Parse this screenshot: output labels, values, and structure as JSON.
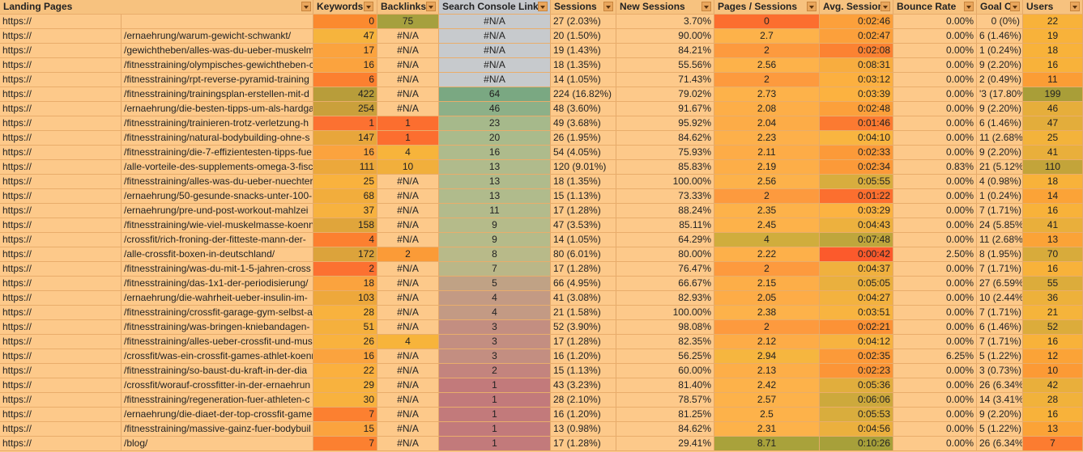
{
  "headers": {
    "landing": "Landing Pages",
    "keywords": "Keywords",
    "backlinks": "Backlinks",
    "sc_links": "Search Console Links",
    "sessions": "Sessions",
    "new_sessions": "New Sessions",
    "pages_session": "Pages / Sessions",
    "avg_sessions": "Avg. Sessions",
    "bounce": "Bounce Rate",
    "goal": "Goal Co",
    "users": "Users"
  },
  "rows": [
    [
      "https://",
      "",
      "0",
      "75",
      "#N/A",
      "27 (2.03%)",
      "3.70%",
      "0",
      "0:02:46",
      "0.00%",
      "0 (0%)",
      "22"
    ],
    [
      "https://",
      "/ernaehrung/warum-gewicht-schwankt/",
      "47",
      "#N/A",
      "#N/A",
      "20 (1.50%)",
      "90.00%",
      "2.7",
      "0:02:47",
      "0.00%",
      "6 (1.46%)",
      "19"
    ],
    [
      "https://",
      "/gewichtheben/alles-was-du-ueber-muskelm",
      "17",
      "#N/A",
      "#N/A",
      "19 (1.43%)",
      "84.21%",
      "2",
      "0:02:08",
      "0.00%",
      "1 (0.24%)",
      "18"
    ],
    [
      "https://",
      "/fitnesstraining/olympisches-gewichtheben-c",
      "16",
      "#N/A",
      "#N/A",
      "18 (1.35%)",
      "55.56%",
      "2.56",
      "0:08:31",
      "0.00%",
      "9 (2.20%)",
      "16"
    ],
    [
      "https://",
      "/fitnesstraining/rpt-reverse-pyramid-training",
      "6",
      "#N/A",
      "#N/A",
      "14 (1.05%)",
      "71.43%",
      "2",
      "0:03:12",
      "0.00%",
      "2 (0.49%)",
      "11"
    ],
    [
      "https://",
      "/fitnesstraining/trainingsplan-erstellen-mit-d",
      "422",
      "#N/A",
      "64",
      "224 (16.82%)",
      "79.02%",
      "2.73",
      "0:03:39",
      "0.00%",
      "'3 (17.80%",
      "199"
    ],
    [
      "https://",
      "/ernaehrung/die-besten-tipps-um-als-hardga",
      "254",
      "#N/A",
      "46",
      "48 (3.60%)",
      "91.67%",
      "2.08",
      "0:02:48",
      "0.00%",
      "9 (2.20%)",
      "46"
    ],
    [
      "https://",
      "/fitnesstraining/trainieren-trotz-verletzung-h",
      "1",
      "1",
      "23",
      "49 (3.68%)",
      "95.92%",
      "2.04",
      "0:01:46",
      "0.00%",
      "6 (1.46%)",
      "47"
    ],
    [
      "https://",
      "/fitnesstraining/natural-bodybuilding-ohne-s",
      "147",
      "1",
      "20",
      "26 (1.95%)",
      "84.62%",
      "2.23",
      "0:04:10",
      "0.00%",
      "11 (2.68%)",
      "25"
    ],
    [
      "https://",
      "/fitnesstraining/die-7-effizientesten-tipps-fue",
      "16",
      "4",
      "16",
      "54 (4.05%)",
      "75.93%",
      "2.11",
      "0:02:33",
      "0.00%",
      "9 (2.20%)",
      "41"
    ],
    [
      "https://",
      "/alle-vorteile-des-supplements-omega-3-fisch",
      "111",
      "10",
      "13",
      "120 (9.01%)",
      "85.83%",
      "2.19",
      "0:02:34",
      "0.83%",
      "21 (5.12%)",
      "110"
    ],
    [
      "https://",
      "/fitnesstraining/alles-was-du-ueber-nuechter",
      "25",
      "#N/A",
      "13",
      "18 (1.35%)",
      "100.00%",
      "2.56",
      "0:05:55",
      "0.00%",
      "4 (0.98%)",
      "18"
    ],
    [
      "https://",
      "/ernaehrung/50-gesunde-snacks-unter-100-",
      "68",
      "#N/A",
      "13",
      "15 (1.13%)",
      "73.33%",
      "2",
      "0:01:22",
      "0.00%",
      "1 (0.24%)",
      "14"
    ],
    [
      "https://",
      "/ernaehrung/pre-und-post-workout-mahlzei",
      "37",
      "#N/A",
      "11",
      "17 (1.28%)",
      "88.24%",
      "2.35",
      "0:03:29",
      "0.00%",
      "7 (1.71%)",
      "16"
    ],
    [
      "https://",
      "/fitnesstraining/wie-viel-muskelmasse-koenn",
      "158",
      "#N/A",
      "9",
      "47 (3.53%)",
      "85.11%",
      "2.45",
      "0:04:43",
      "0.00%",
      "24 (5.85%)",
      "41"
    ],
    [
      "https://",
      "/crossfit/rich-froning-der-fitteste-mann-der-",
      "4",
      "#N/A",
      "9",
      "14 (1.05%)",
      "64.29%",
      "4",
      "0:07:48",
      "0.00%",
      "11 (2.68%)",
      "13"
    ],
    [
      "https://",
      "/alle-crossfit-boxen-in-deutschland/",
      "172",
      "2",
      "8",
      "80 (6.01%)",
      "80.00%",
      "2.22",
      "0:00:42",
      "2.50%",
      "8 (1.95%)",
      "70"
    ],
    [
      "https://",
      "/fitnesstraining/was-du-mit-1-5-jahren-cross",
      "2",
      "#N/A",
      "7",
      "17 (1.28%)",
      "76.47%",
      "2",
      "0:04:37",
      "0.00%",
      "7 (1.71%)",
      "16"
    ],
    [
      "https://",
      "/fitnesstraining/das-1x1-der-periodisierung/",
      "18",
      "#N/A",
      "5",
      "66 (4.95%)",
      "66.67%",
      "2.15",
      "0:05:05",
      "0.00%",
      "27 (6.59%)",
      "55"
    ],
    [
      "https://",
      "/ernaehrung/die-wahrheit-ueber-insulin-im-",
      "103",
      "#N/A",
      "4",
      "41 (3.08%)",
      "82.93%",
      "2.05",
      "0:04:27",
      "0.00%",
      "10 (2.44%)",
      "36"
    ],
    [
      "https://",
      "/fitnesstraining/crossfit-garage-gym-selbst-a",
      "28",
      "#N/A",
      "4",
      "21 (1.58%)",
      "100.00%",
      "2.38",
      "0:03:51",
      "0.00%",
      "7 (1.71%)",
      "21"
    ],
    [
      "https://",
      "/fitnesstraining/was-bringen-kniebandagen-",
      "51",
      "#N/A",
      "3",
      "52 (3.90%)",
      "98.08%",
      "2",
      "0:02:21",
      "0.00%",
      "6 (1.46%)",
      "52"
    ],
    [
      "https://",
      "/fitnesstraining/alles-ueber-crossfit-und-mus",
      "26",
      "4",
      "3",
      "17 (1.28%)",
      "82.35%",
      "2.12",
      "0:04:12",
      "0.00%",
      "7 (1.71%)",
      "16"
    ],
    [
      "https://",
      "/crossfit/was-ein-crossfit-games-athlet-koenn",
      "16",
      "#N/A",
      "3",
      "16 (1.20%)",
      "56.25%",
      "2.94",
      "0:02:35",
      "6.25%",
      "5 (1.22%)",
      "12"
    ],
    [
      "https://",
      "/fitnesstraining/so-baust-du-kraft-in-der-dia",
      "22",
      "#N/A",
      "2",
      "15 (1.13%)",
      "60.00%",
      "2.13",
      "0:02:23",
      "0.00%",
      "3 (0.73%)",
      "10"
    ],
    [
      "https://",
      "/crossfit/worauf-crossfitter-in-der-ernaehrun",
      "29",
      "#N/A",
      "1",
      "43 (3.23%)",
      "81.40%",
      "2.42",
      "0:05:36",
      "0.00%",
      "26 (6.34%)",
      "42"
    ],
    [
      "https://",
      "/fitnesstraining/regeneration-fuer-athleten-c",
      "30",
      "#N/A",
      "1",
      "28 (2.10%)",
      "78.57%",
      "2.57",
      "0:06:06",
      "0.00%",
      "14 (3.41%)",
      "28"
    ],
    [
      "https://",
      "/ernaehrung/die-diaet-der-top-crossfit-game",
      "7",
      "#N/A",
      "1",
      "16 (1.20%)",
      "81.25%",
      "2.5",
      "0:05:53",
      "0.00%",
      "9 (2.20%)",
      "16"
    ],
    [
      "https://",
      "/fitnesstraining/massive-gainz-fuer-bodybuil",
      "15",
      "#N/A",
      "1",
      "13 (0.98%)",
      "84.62%",
      "2.31",
      "0:04:56",
      "0.00%",
      "5 (1.22%)",
      "13"
    ],
    [
      "https://",
      "/blog/",
      "7",
      "#N/A",
      "1",
      "17 (1.28%)",
      "29.41%",
      "8.71",
      "0:10:26",
      "0.00%",
      "26 (6.34%)",
      "7"
    ]
  ],
  "colors": {
    "keywords": [
      "#fb8a2f",
      "#f6b43d",
      "#fba33e",
      "#fba33e",
      "#fc8030",
      "#b89d3a",
      "#caa03b",
      "#fc7131",
      "#e8a63b",
      "#fba33e",
      "#eca83b",
      "#f9b23e",
      "#f2ad3c",
      "#f7b23f",
      "#e0a53b",
      "#fc8030",
      "#dca33b",
      "#fc7131",
      "#fba33e",
      "#eea83b",
      "#f8b23e",
      "#f5b03d",
      "#f9b23e",
      "#fba33e",
      "#fbb03e",
      "#f8b23e",
      "#f8b23e",
      "#fc8030",
      "#fba33e",
      "#fc8030"
    ],
    "backlinks": [
      "#a6a03e",
      "#fdc98a",
      "#fdc98a",
      "#fdc98a",
      "#fdc98a",
      "#fdc98a",
      "#fdc98a",
      "#fc6e2f",
      "#fc6e2f",
      "#f7b43b",
      "#f1af3c",
      "#fdc98a",
      "#fdc98a",
      "#fdc98a",
      "#fdc98a",
      "#fdc98a",
      "#fb9b37",
      "#fdc98a",
      "#fdc98a",
      "#fdc98a",
      "#fdc98a",
      "#fdc98a",
      "#f7b43b",
      "#fdc98a",
      "#fdc98a",
      "#fdc98a",
      "#fdc98a",
      "#fdc98a",
      "#fdc98a",
      "#fdc98a"
    ],
    "sc": [
      "#c7cacd",
      "#c7cacd",
      "#c7cacd",
      "#c7cacd",
      "#c7cacd",
      "#7aa882",
      "#8db088",
      "#a6b98b",
      "#aabb8c",
      "#aebb8c",
      "#b0bb8c",
      "#b0bb8c",
      "#b0bb8c",
      "#b3bb8c",
      "#b5bb8a",
      "#b5bb8a",
      "#b8ba89",
      "#bab788",
      "#c0a285",
      "#c39a84",
      "#c39a84",
      "#c38e81",
      "#c38e81",
      "#c38e81",
      "#c3847e",
      "#c27a7b",
      "#c27a7b",
      "#c27a7b",
      "#c27a7b",
      "#c27a7b"
    ],
    "pages": [
      "#fc6e2f",
      "#fdb24a",
      "#fd9a3e",
      "#fdb24a",
      "#fd9a3e",
      "#fdb24a",
      "#fdae48",
      "#fdac47",
      "#fdb04a",
      "#fdac47",
      "#fdae48",
      "#fdb24a",
      "#fd9a3e",
      "#fdb24a",
      "#fdb24a",
      "#d0ad3d",
      "#fdb04a",
      "#fd9a3e",
      "#fdae48",
      "#fdac47",
      "#fdb24a",
      "#fd9a3e",
      "#fdac47",
      "#f6b63f",
      "#fdae48",
      "#fdb24a",
      "#fdb24a",
      "#fdb24a",
      "#fdb24a",
      "#a9a23b"
    ],
    "avg": [
      "#fca03b",
      "#fca03b",
      "#fc8232",
      "#f8ad3f",
      "#fcb040",
      "#fcb240",
      "#fca03b",
      "#fc7a31",
      "#f9b540",
      "#fc9a39",
      "#fc9a39",
      "#d8ad3e",
      "#fc6f2f",
      "#fcb341",
      "#edb13e",
      "#bfa63c",
      "#fc5a2c",
      "#f0b13e",
      "#eab03e",
      "#f3b23f",
      "#f8b440",
      "#fc9236",
      "#f7b340",
      "#fc9a39",
      "#fc9537",
      "#e1ae3d",
      "#cda93c",
      "#d9ad3d",
      "#ebb03e",
      "#a7a03a"
    ],
    "users": [
      "#f8b23a",
      "#f8b23a",
      "#f8b23a",
      "#f8b23a",
      "#fb9d35",
      "#a99e38",
      "#e6ae3b",
      "#e3ad3b",
      "#f3b33b",
      "#e9af3b",
      "#c3a43a",
      "#f8b23a",
      "#fba337",
      "#f8b23a",
      "#e9af3b",
      "#fba337",
      "#d8ab3b",
      "#f8b23a",
      "#dcac3b",
      "#edb13b",
      "#f5b43b",
      "#dcac3b",
      "#f8b23a",
      "#fba337",
      "#fc9a35",
      "#e9af3b",
      "#f1b23b",
      "#f8b23a",
      "#fba337",
      "#fc7c30"
    ]
  }
}
